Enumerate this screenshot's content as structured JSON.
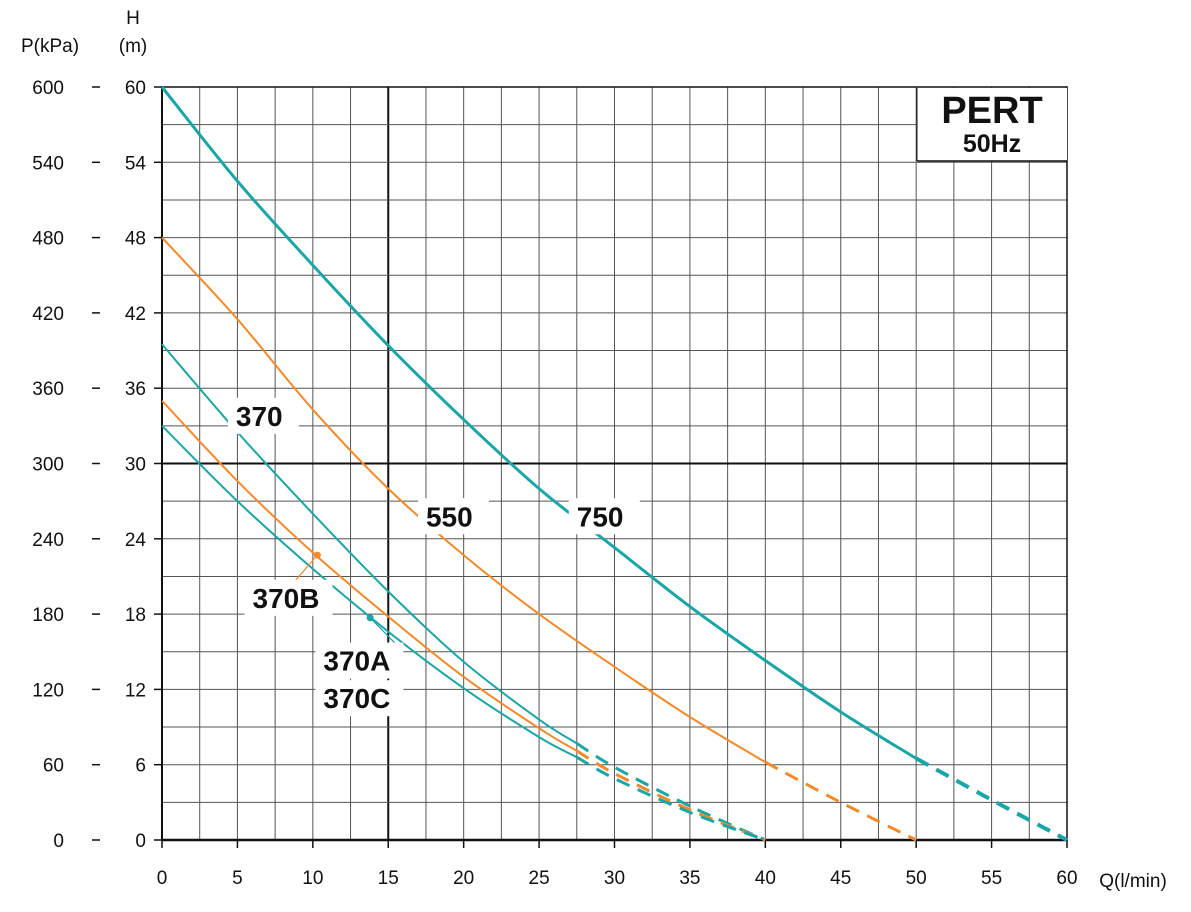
{
  "chart_data": {
    "type": "line",
    "title": "PERT",
    "subtitle": "50Hz",
    "xlabel": "Q(l/min)",
    "ylabel": "H (m)",
    "ylabel_left_label": "P(kPa)",
    "ylabel_top": "H",
    "ylabel_unit": "(m)",
    "xlim": [
      0,
      60
    ],
    "ylim": [
      0,
      60
    ],
    "plim": [
      0,
      600
    ],
    "xticks": [
      0,
      5,
      10,
      15,
      20,
      25,
      30,
      35,
      40,
      45,
      50,
      55,
      60
    ],
    "yticks": [
      0,
      6,
      12,
      18,
      24,
      30,
      36,
      42,
      48,
      54,
      60
    ],
    "pticks": [
      0,
      60,
      120,
      180,
      240,
      300,
      360,
      420,
      480,
      540,
      600
    ],
    "grid": true,
    "colors": {
      "teal": "#1aa6a6",
      "orange": "#f28a2a"
    },
    "series": [
      {
        "name": "750",
        "color": "#1aa6a6",
        "solid_until": 50,
        "x": [
          0,
          5,
          10,
          15,
          20,
          25,
          30,
          35,
          40,
          45,
          50,
          55,
          60
        ],
        "y": [
          60,
          52.5,
          45.8,
          39.4,
          33.5,
          28,
          23.3,
          18.6,
          14.3,
          10.2,
          6.5,
          3.2,
          0
        ]
      },
      {
        "name": "550",
        "color": "#f28a2a",
        "solid_until": 40,
        "x": [
          0,
          5,
          10,
          15,
          20,
          25,
          30,
          35,
          40,
          45,
          50
        ],
        "y": [
          48,
          41.5,
          34.3,
          28,
          22.7,
          18,
          13.8,
          9.8,
          6.2,
          3,
          0
        ]
      },
      {
        "name": "370",
        "color": "#1aa6a6",
        "solid_until": 27.5,
        "x": [
          0,
          5,
          10,
          15,
          20,
          25,
          27.5,
          30,
          35,
          40
        ],
        "y": [
          39.5,
          32.5,
          26,
          19.8,
          14.2,
          9.6,
          7.7,
          5.8,
          2.7,
          0
        ]
      },
      {
        "name": "370B",
        "color": "#f28a2a",
        "solid_until": 27.5,
        "x": [
          0,
          5,
          10,
          15,
          20,
          25,
          27.5,
          30,
          35,
          40
        ],
        "y": [
          35,
          28.6,
          22.9,
          17.8,
          13,
          8.9,
          7.1,
          5.3,
          2.4,
          0
        ]
      },
      {
        "name": "370A / 370C",
        "color": "#1aa6a6",
        "solid_until": 27.5,
        "x": [
          0,
          5,
          10,
          15,
          20,
          25,
          27.5,
          30,
          35,
          40
        ],
        "y": [
          33,
          27,
          21.6,
          16.6,
          12.1,
          8.2,
          6.6,
          4.9,
          2.2,
          0
        ]
      }
    ],
    "annotations": [
      {
        "text": "370",
        "x": 4.9,
        "y": 33
      },
      {
        "text": "550",
        "x": 17.5,
        "y": 25
      },
      {
        "text": "750",
        "x": 27.5,
        "y": 25
      },
      {
        "text": "370B",
        "x": 6,
        "y": 18.5,
        "point": [
          10.3,
          22.7
        ]
      },
      {
        "text": "370A",
        "x": 10.7,
        "y": 13.5,
        "point": [
          13.8,
          17.7
        ]
      },
      {
        "text": "370C",
        "x": 10.7,
        "y": 10.5
      }
    ]
  }
}
